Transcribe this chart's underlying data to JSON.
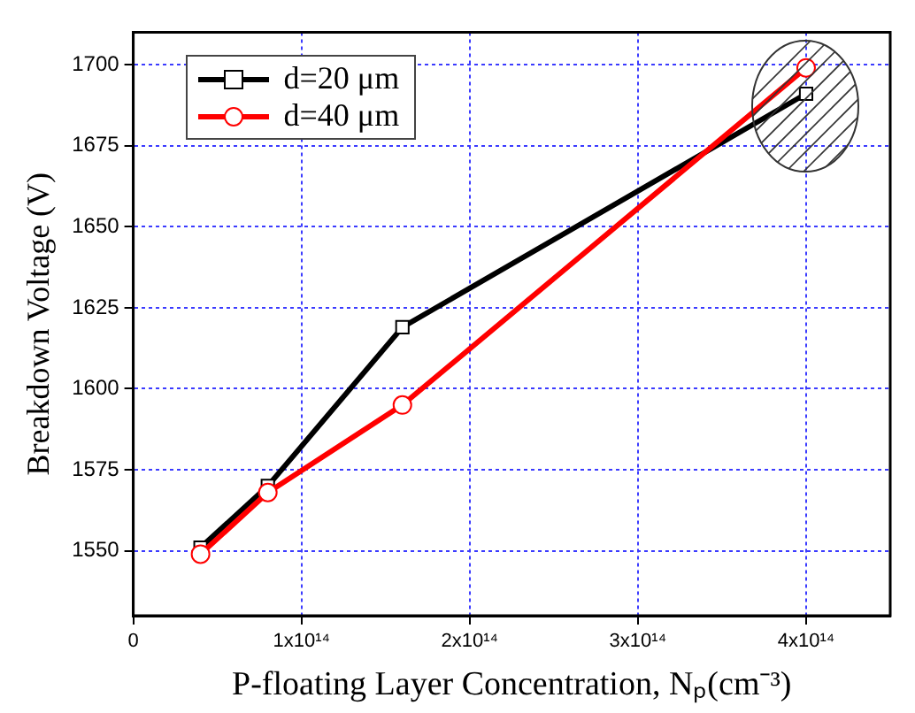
{
  "chart_data": {
    "type": "line",
    "xlabel": "P-floating Layer Concentration, Nₚ(cm⁻³)",
    "ylabel": "Breakdown Voltage (V)",
    "x": [
      40000000000000.0,
      80000000000000.0,
      160000000000000.0,
      400000000000000.0
    ],
    "series": [
      {
        "name": "d=20 μm",
        "color": "#000000",
        "marker": "square",
        "values": [
          1551,
          1570,
          1619,
          1691
        ]
      },
      {
        "name": "d=40 μm",
        "color": "#ff0000",
        "marker": "circle",
        "values": [
          1549,
          1568,
          1595,
          1699
        ]
      }
    ],
    "xlim": [
      0,
      450000000000000.0
    ],
    "xticks": [
      0,
      {
        "value": 100000000000000.0,
        "label": "1x10¹⁴"
      },
      {
        "value": 200000000000000.0,
        "label": "2x10¹⁴"
      },
      {
        "value": 300000000000000.0,
        "label": "3x10¹⁴"
      },
      {
        "value": 400000000000000.0,
        "label": "4x10¹⁴"
      }
    ],
    "ylim": [
      1530,
      1710
    ],
    "yticks": [
      1550,
      1575,
      1600,
      1625,
      1650,
      1675,
      1700
    ],
    "grid": true,
    "legend": "top left",
    "line_style": "solid"
  }
}
